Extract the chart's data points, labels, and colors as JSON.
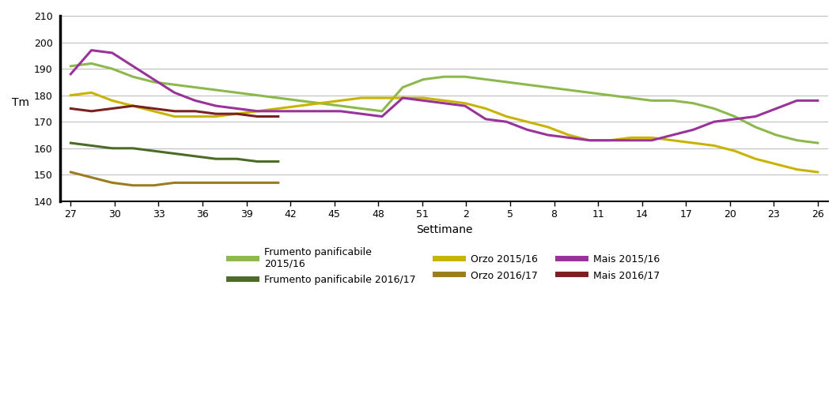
{
  "xlabel": "Settimane",
  "ylabel": "Tm",
  "ylim": [
    140,
    210
  ],
  "yticks": [
    140,
    150,
    160,
    170,
    180,
    190,
    200,
    210
  ],
  "x_labels": [
    "27",
    "30",
    "33",
    "36",
    "39",
    "42",
    "45",
    "48",
    "51",
    "2",
    "5",
    "8",
    "11",
    "14",
    "17",
    "20",
    "23",
    "26"
  ],
  "n_points": 37,
  "series": {
    "Frumento panificabile\n2015/16": {
      "color": "#8CB84E",
      "linewidth": 2.2,
      "data": [
        191,
        192,
        190,
        187,
        185,
        184,
        183,
        182,
        181,
        180,
        179,
        178,
        177,
        176,
        175,
        174,
        183,
        186,
        187,
        187,
        186,
        185,
        184,
        183,
        182,
        181,
        180,
        179,
        178,
        178,
        177,
        175,
        172,
        168,
        165,
        163,
        162
      ]
    },
    "Frumento panificabile 2016/17": {
      "color": "#4B6B27",
      "linewidth": 2.2,
      "data": [
        162,
        161,
        160,
        160,
        159,
        158,
        157,
        156,
        156,
        155,
        155,
        null,
        null,
        null,
        null,
        null,
        null,
        null,
        null,
        null,
        null,
        null,
        null,
        null,
        null,
        null,
        null,
        null,
        null,
        null,
        null,
        null,
        null,
        null,
        null,
        null,
        null
      ]
    },
    "Orzo 2015/16": {
      "color": "#C8B400",
      "linewidth": 2.2,
      "data": [
        180,
        181,
        178,
        176,
        174,
        172,
        172,
        172,
        173,
        174,
        175,
        176,
        177,
        178,
        179,
        179,
        179,
        179,
        178,
        177,
        175,
        172,
        170,
        168,
        165,
        163,
        163,
        164,
        164,
        163,
        162,
        161,
        159,
        156,
        154,
        152,
        151
      ]
    },
    "Orzo 2016/17": {
      "color": "#9B7D20",
      "linewidth": 2.2,
      "data": [
        151,
        149,
        147,
        146,
        146,
        147,
        147,
        147,
        147,
        147,
        147,
        null,
        null,
        null,
        null,
        null,
        null,
        null,
        null,
        null,
        null,
        null,
        null,
        null,
        null,
        null,
        null,
        null,
        null,
        null,
        null,
        null,
        null,
        null,
        null,
        null,
        null
      ]
    },
    "Mais 2015/16": {
      "color": "#993399",
      "linewidth": 2.2,
      "data": [
        188,
        197,
        196,
        191,
        186,
        181,
        178,
        176,
        175,
        174,
        174,
        174,
        174,
        174,
        173,
        172,
        179,
        178,
        177,
        176,
        171,
        170,
        167,
        165,
        164,
        163,
        163,
        163,
        163,
        165,
        167,
        170,
        171,
        172,
        175,
        178,
        178
      ]
    },
    "Mais 2016/17": {
      "color": "#7B2020",
      "linewidth": 2.2,
      "data": [
        175,
        174,
        175,
        176,
        175,
        174,
        174,
        173,
        173,
        172,
        172,
        null,
        null,
        null,
        null,
        null,
        null,
        null,
        null,
        null,
        null,
        null,
        null,
        null,
        null,
        null,
        null,
        null,
        null,
        null,
        null,
        null,
        null,
        null,
        null,
        null,
        null
      ]
    }
  },
  "legend_order": [
    "Frumento panificabile\n2015/16",
    "Frumento panificabile 2016/17",
    "Orzo 2015/16",
    "Orzo 2016/17",
    "Mais 2015/16",
    "Mais 2016/17"
  ]
}
